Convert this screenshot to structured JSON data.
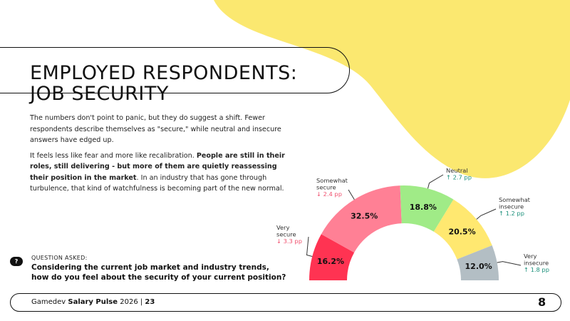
{
  "title_line1": "EMPLOYED RESPONDENTS:",
  "title_line2": "JOB SECURITY",
  "paragraph1": "The numbers don't point to panic, but they do suggest a shift. Fewer respondents describe themselves as \"secure,\" while neutral and insecure answers have edged up.",
  "paragraph2_start": "It feels less like fear and more like recalibration. ",
  "paragraph2_bold": "People are still in their roles, still delivering - but more of them are quietly reassessing their position in the market",
  "paragraph2_end": ". In an industry that has gone through turbulence, that kind of watchfulness is becoming part of the new normal.",
  "question": {
    "icon": "question-icon",
    "icon_text": "?",
    "label": "QUESTION ASKED:",
    "line1": "Considering the current job market and industry trends,",
    "line2": "how do you feel about the security of your current position?"
  },
  "footer": {
    "brand_start": "Gamedev ",
    "brand_bold": "Salary Pulse",
    "year": " 2026 | ",
    "page": "23",
    "logo": "8"
  },
  "colors": {
    "accent_yellow": "#fbe870",
    "up": "#1a8f7a",
    "down": "#f0506e"
  },
  "chart_data": {
    "type": "pie",
    "variant": "half-donut",
    "categories": [
      "Very secure",
      "Somewhat secure",
      "Neutral",
      "Somewhat insecure",
      "Very insecure"
    ],
    "values": [
      16.2,
      32.5,
      18.8,
      20.5,
      12.0
    ],
    "value_labels": [
      "16.2%",
      "32.5%",
      "18.8%",
      "20.5%",
      "12.0%"
    ],
    "changes": [
      "↓ 3.3 pp",
      "↓ 2.4 pp",
      "↑ 2.7 pp",
      "↑ 1.2 pp",
      "↑ 1.8 pp"
    ],
    "change_direction": [
      "down",
      "down",
      "up",
      "up",
      "up"
    ],
    "colors": [
      "#ff3352",
      "#ff8095",
      "#a0eb87",
      "#ffe870",
      "#b3bec4"
    ]
  }
}
